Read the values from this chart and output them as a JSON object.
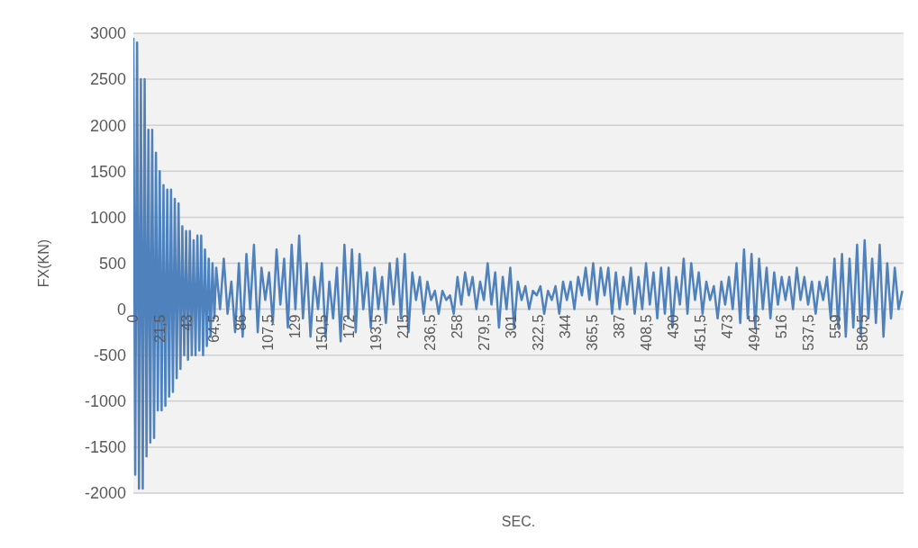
{
  "chart_data": {
    "type": "line",
    "xlabel": "SEC.",
    "ylabel": "FX(KN)",
    "grid": "y",
    "xlim": [
      0,
      613
    ],
    "ylim": [
      -2000,
      3000
    ],
    "yticks": [
      -2000,
      -1500,
      -1000,
      -500,
      0,
      500,
      1000,
      1500,
      2000,
      2500,
      3000
    ],
    "xticks": [
      0,
      {
        "value": 21.5,
        "label": "21,5"
      },
      43,
      {
        "value": 64.5,
        "label": "64,5"
      },
      86,
      {
        "value": 107.5,
        "label": "107,5"
      },
      129,
      {
        "value": 150.5,
        "label": "150,5"
      },
      172,
      {
        "value": 193.5,
        "label": "193,5"
      },
      215,
      {
        "value": 236.5,
        "label": "236,5"
      },
      258,
      {
        "value": 279.5,
        "label": "279,5"
      },
      301,
      {
        "value": 322.5,
        "label": "322,5"
      },
      344,
      {
        "value": 365.5,
        "label": "365,5"
      },
      387,
      {
        "value": 408.5,
        "label": "408,5"
      },
      430,
      {
        "value": 451.5,
        "label": "451,5"
      },
      473,
      {
        "value": 494.5,
        "label": "494,5"
      },
      516,
      {
        "value": 537.5,
        "label": "537,5"
      },
      559,
      {
        "value": 580.5,
        "label": "580,5"
      }
    ],
    "series": [
      {
        "color": "#4f81bd",
        "x": [
          0,
          1.5,
          3,
          4.5,
          6,
          7.5,
          9,
          10.5,
          12,
          13.5,
          15,
          16.5,
          18,
          19.5,
          21,
          22.5,
          24,
          25.5,
          27,
          28.5,
          30,
          31.5,
          33,
          34.5,
          36,
          37.5,
          39,
          40.5,
          42,
          43.5,
          45,
          46.5,
          48,
          49.5,
          51,
          52.5,
          54,
          55.5,
          57,
          58.5,
          60,
          61.5,
          63,
          64.5,
          66,
          69,
          72,
          75,
          78,
          81,
          84,
          87,
          90,
          93,
          96,
          99,
          102,
          105,
          108,
          111,
          114,
          117,
          120,
          123,
          126,
          129,
          132,
          135,
          138,
          141,
          144,
          147,
          150,
          153,
          156,
          159,
          162,
          165,
          168,
          171,
          174,
          177,
          180,
          183,
          186,
          189,
          192,
          195,
          198,
          201,
          204,
          207,
          210,
          213,
          216,
          219,
          222,
          225,
          228,
          231,
          234,
          237,
          240,
          243,
          246,
          249,
          252,
          255,
          258,
          261,
          264,
          267,
          270,
          273,
          276,
          279,
          282,
          285,
          288,
          291,
          294,
          297,
          300,
          303,
          306,
          309,
          312,
          315,
          318,
          321,
          324,
          327,
          330,
          333,
          336,
          339,
          342,
          345,
          348,
          351,
          354,
          357,
          360,
          363,
          366,
          369,
          372,
          375,
          378,
          381,
          384,
          387,
          390,
          393,
          396,
          399,
          402,
          405,
          408,
          411,
          414,
          417,
          420,
          423,
          426,
          429,
          432,
          435,
          438,
          441,
          444,
          447,
          450,
          453,
          456,
          459,
          462,
          465,
          468,
          471,
          474,
          477,
          480,
          483,
          486,
          489,
          492,
          495,
          498,
          501,
          504,
          507,
          510,
          513,
          516,
          519,
          522,
          525,
          528,
          531,
          534,
          537,
          540,
          543,
          546,
          549,
          552,
          555,
          558,
          561,
          564,
          567,
          570,
          573,
          576,
          579,
          582,
          585,
          588,
          591,
          594,
          597,
          600,
          603,
          606,
          609,
          612
        ],
        "values": [
          2950,
          -1800,
          2900,
          -1950,
          2500,
          -1950,
          2500,
          -1600,
          1950,
          -1450,
          1950,
          -1400,
          1700,
          -1100,
          1500,
          -1100,
          1350,
          -1050,
          1300,
          -950,
          1300,
          -900,
          1200,
          -750,
          1150,
          -650,
          900,
          -500,
          850,
          -550,
          850,
          -500,
          750,
          -500,
          800,
          -450,
          800,
          -500,
          650,
          -400,
          550,
          -300,
          500,
          -100,
          450,
          0,
          550,
          -50,
          300,
          -250,
          500,
          -300,
          600,
          0,
          700,
          -250,
          450,
          100,
          400,
          -150,
          650,
          50,
          550,
          -200,
          700,
          0,
          800,
          -100,
          500,
          -300,
          350,
          0,
          500,
          -300,
          300,
          -100,
          450,
          -350,
          700,
          -100,
          650,
          -250,
          600,
          0,
          400,
          -200,
          450,
          0,
          350,
          -150,
          500,
          50,
          550,
          -100,
          600,
          -250,
          400,
          100,
          350,
          -50,
          300,
          100,
          200,
          -50,
          200,
          100,
          150,
          -50,
          350,
          50,
          400,
          150,
          350,
          0,
          300,
          100,
          500,
          50,
          400,
          -200,
          350,
          0,
          450,
          -200,
          300,
          100,
          250,
          0,
          200,
          150,
          250,
          -50,
          200,
          100,
          250,
          -50,
          300,
          100,
          300,
          0,
          350,
          150,
          450,
          100,
          500,
          50,
          450,
          150,
          450,
          -50,
          400,
          0,
          350,
          50,
          450,
          -50,
          350,
          0,
          500,
          50,
          400,
          -100,
          450,
          -50,
          450,
          -200,
          350,
          50,
          550,
          -50,
          500,
          100,
          400,
          -50,
          300,
          100,
          250,
          -100,
          300,
          50,
          350,
          0,
          500,
          -150,
          650,
          -100,
          600,
          -200,
          550,
          0,
          450,
          -100,
          400,
          50,
          350,
          100,
          350,
          0,
          450,
          100,
          350,
          50,
          300,
          -50,
          300,
          100,
          350,
          -100,
          550,
          -200,
          600,
          -300,
          550,
          -200,
          700,
          -300,
          750,
          -100,
          550,
          -150,
          700,
          -300,
          500,
          -100,
          450,
          0,
          200
        ]
      }
    ]
  }
}
